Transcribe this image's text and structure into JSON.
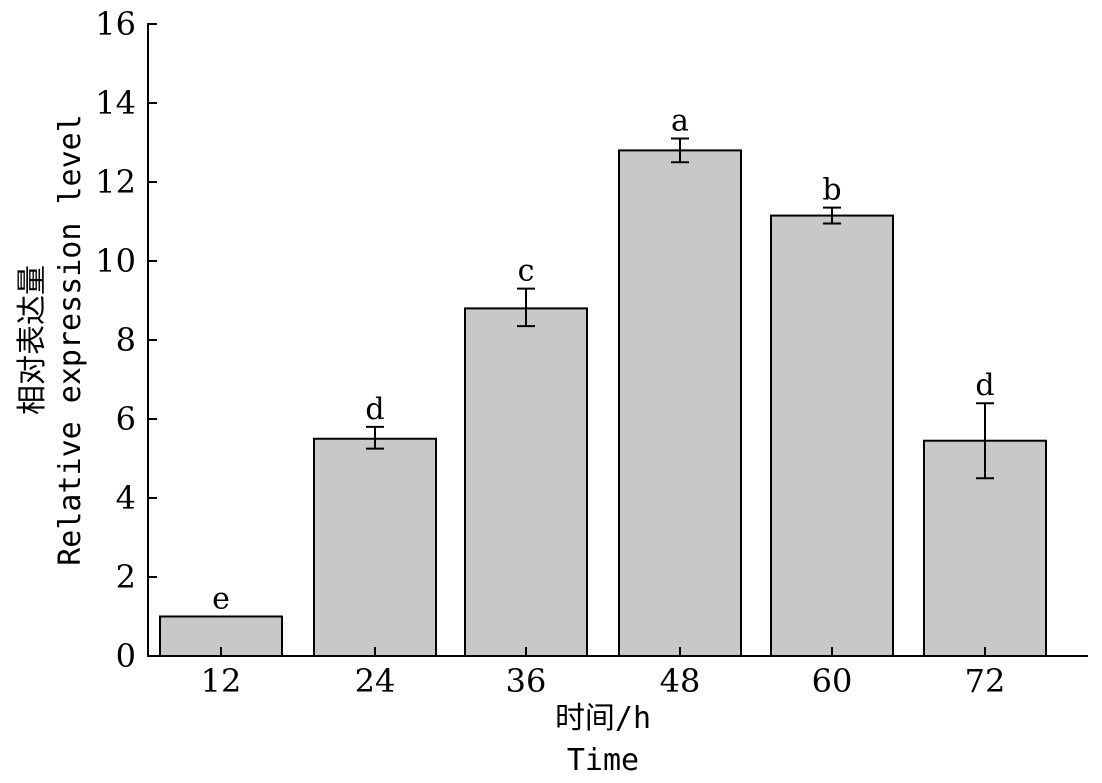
{
  "chart_data": {
    "type": "bar",
    "categories": [
      "12",
      "24",
      "36",
      "48",
      "60",
      "72"
    ],
    "values": [
      1.0,
      5.5,
      8.8,
      12.8,
      11.15,
      5.45
    ],
    "error_low": [
      1.0,
      5.25,
      8.35,
      12.5,
      10.95,
      4.5
    ],
    "error_high": [
      1.0,
      5.8,
      9.3,
      13.1,
      11.35,
      6.4
    ],
    "significance": [
      "e",
      "d",
      "c",
      "a",
      "b",
      "d"
    ],
    "xlabel": [
      "时间/h",
      "Time"
    ],
    "ylabel": [
      "相对表达量",
      "Relative expression level"
    ],
    "ylim": [
      0,
      16
    ],
    "yticks": [
      0,
      2,
      4,
      6,
      8,
      10,
      12,
      14,
      16
    ],
    "grid": false,
    "legend": "none",
    "colors": {
      "bar_fill": "#c8c8c8",
      "bar_stroke": "#000000",
      "axis": "#000000"
    }
  }
}
